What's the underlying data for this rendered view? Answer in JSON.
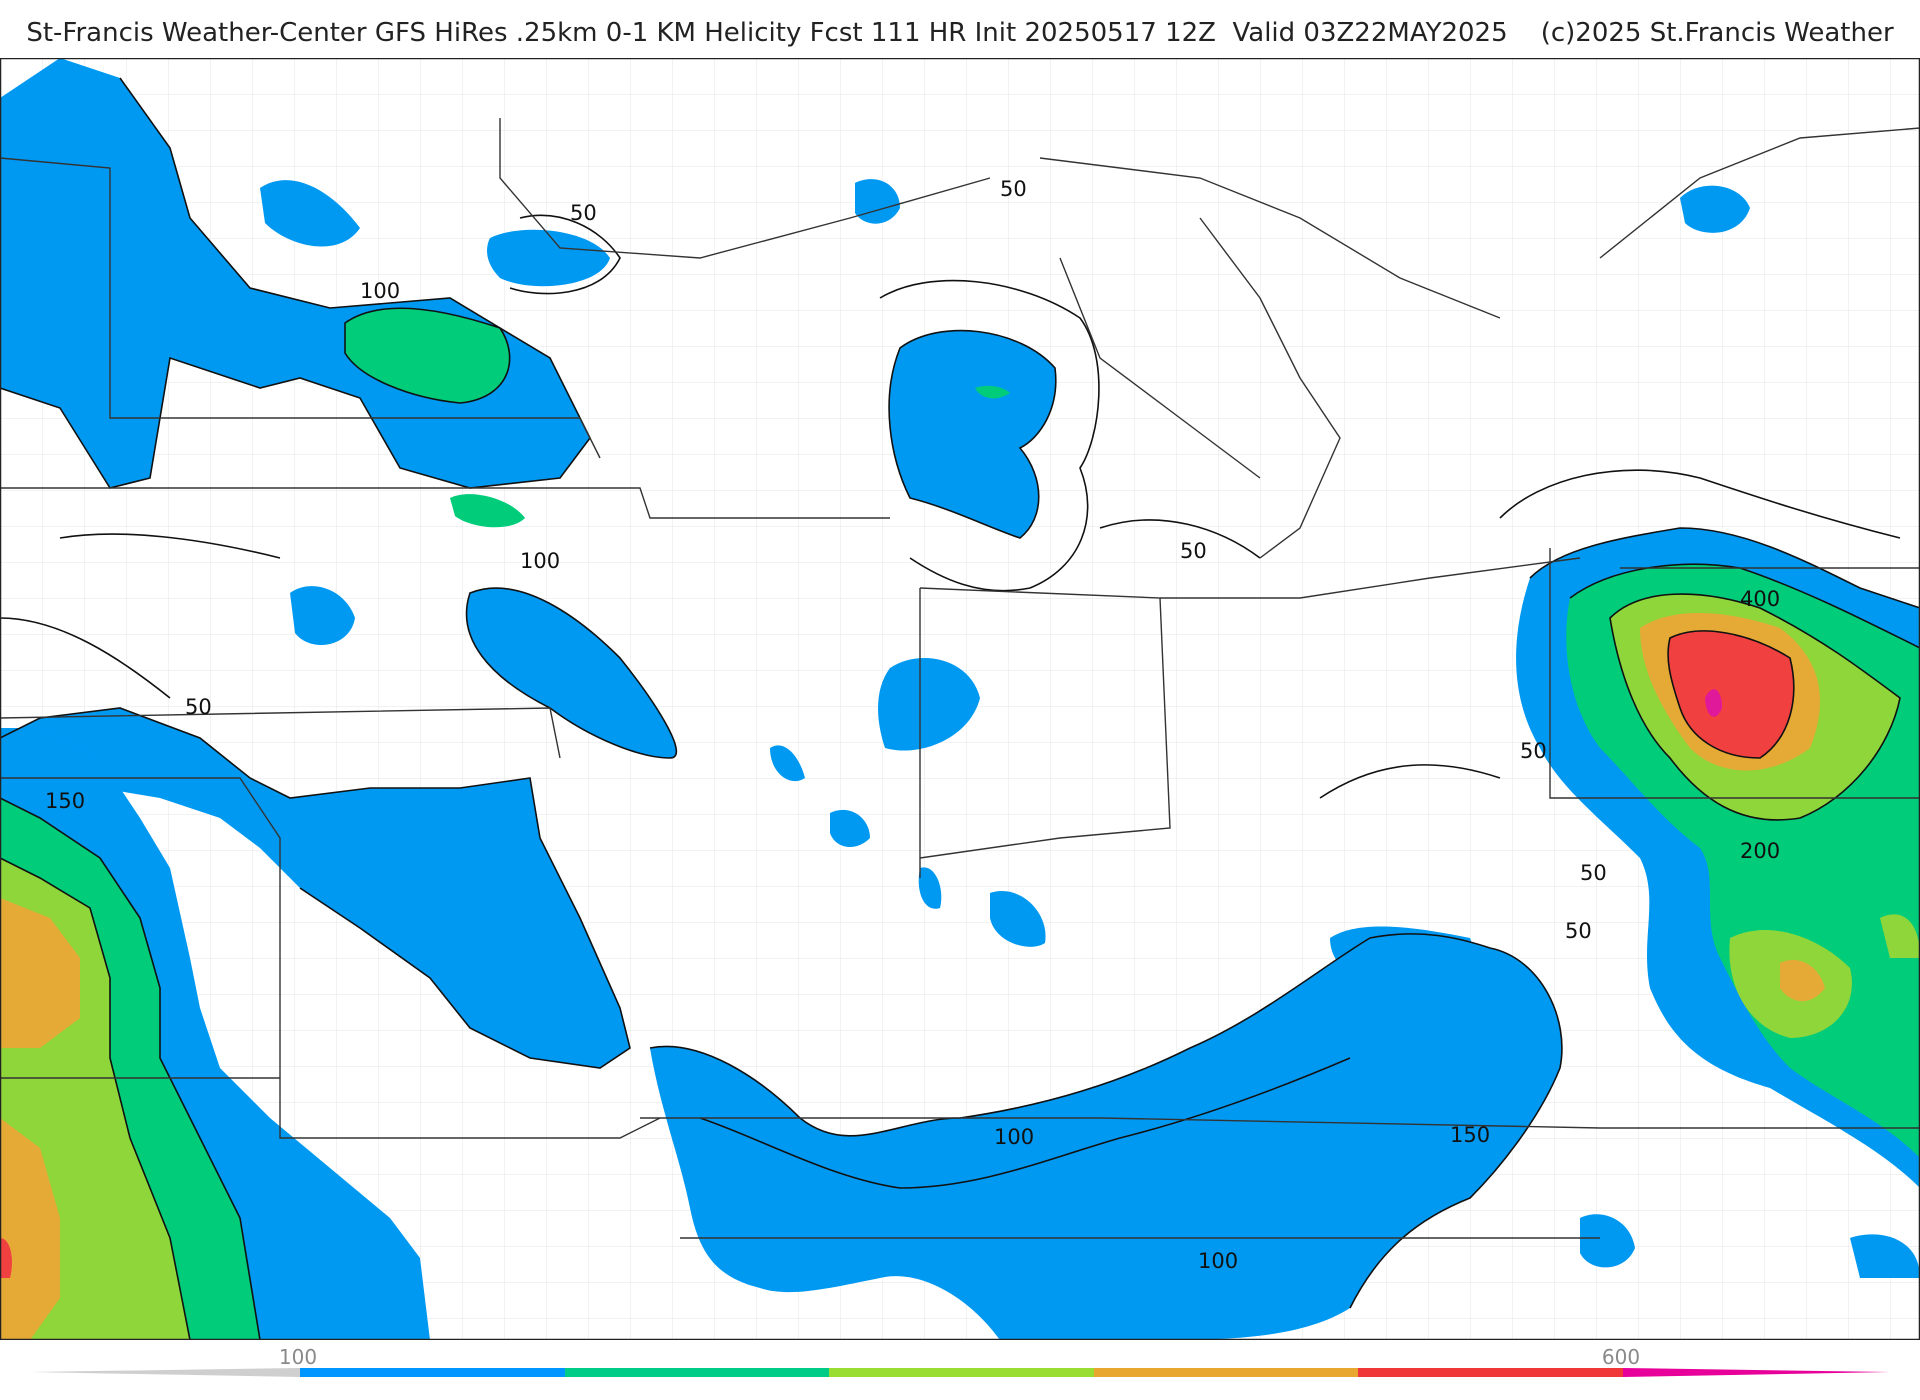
{
  "title": "St-Francis Weather-Center GFS HiRes .25km 0-1 KM Helicity Fcst 111 HR Init 20250517 12Z  Valid 03Z22MAY2025    (c)2025 St.Francis Weather",
  "map": {
    "region": "Central and Eastern United States / Great Lakes",
    "variable": "0-1 KM Helicity",
    "contour_labels": [
      "50",
      "50",
      "100",
      "100",
      "50",
      "50",
      "150",
      "50",
      "50",
      "400",
      "200",
      "50",
      "100",
      "150",
      "100"
    ]
  },
  "colorbar": {
    "tick_labels": [
      "100",
      "600"
    ],
    "colors": [
      "#0096ff",
      "#00cc88",
      "#99dd33",
      "#e8a830",
      "#f03838",
      "#e8009a"
    ]
  },
  "colors": {
    "band_100": "#0099f2",
    "band_150": "#00cc7a",
    "band_200": "#8fd63a",
    "band_300": "#e5a936",
    "band_400": "#f04040",
    "band_500": "#e0189a",
    "contour": "#111111",
    "border": "#333333",
    "county": "#c8c8c8"
  }
}
